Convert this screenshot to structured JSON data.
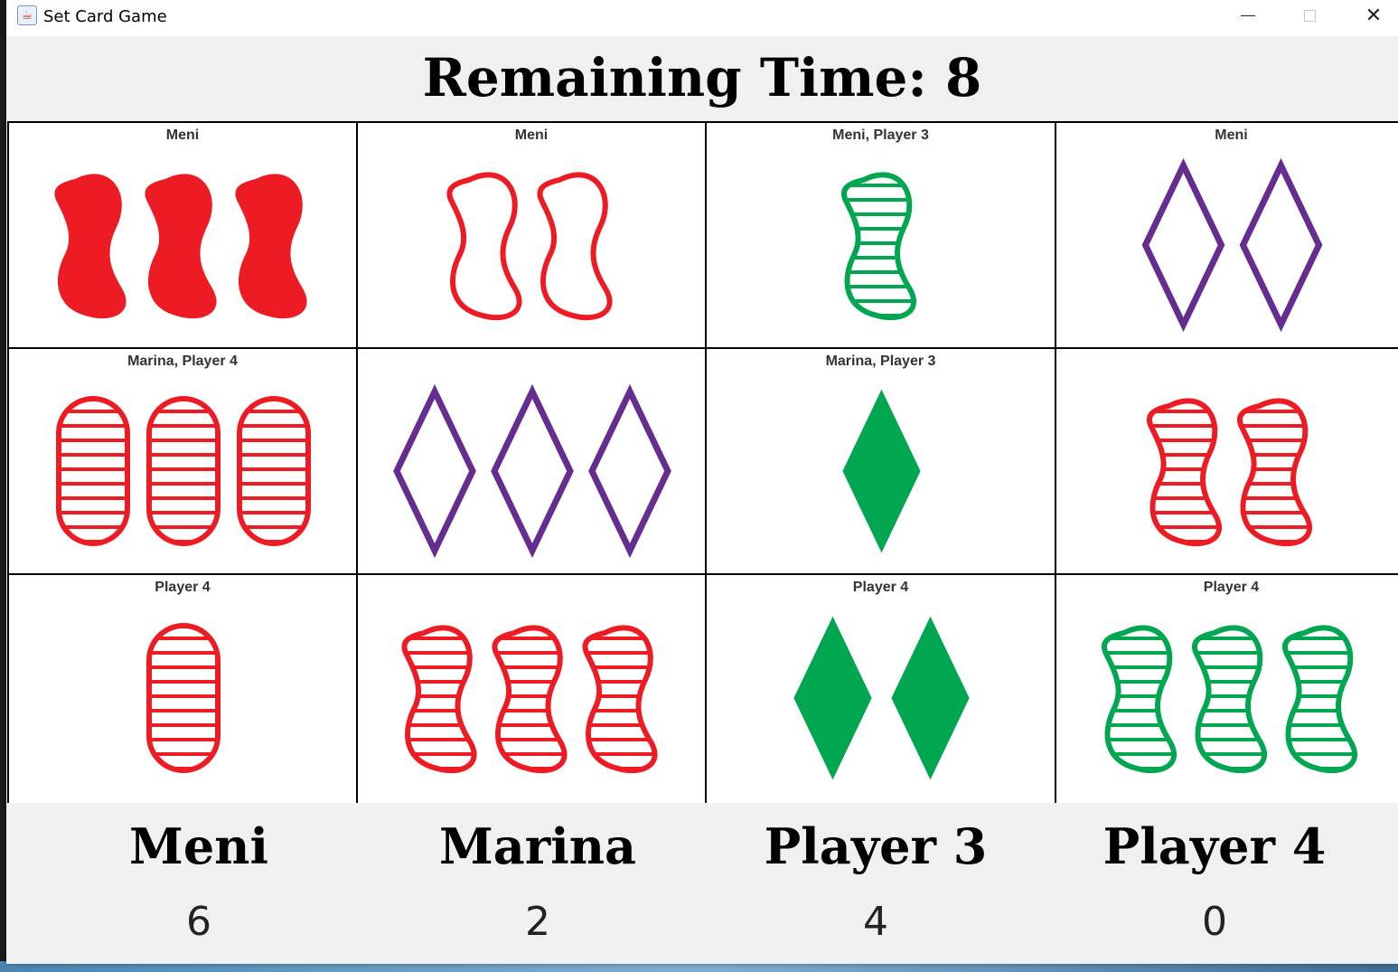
{
  "window": {
    "title": "Set Card Game",
    "minimize_icon": "minimize-icon",
    "maximize_icon": "maximize-icon",
    "close_icon": "close-icon"
  },
  "timer": {
    "label": "Remaining Time: 8"
  },
  "colors": {
    "red": "#ed1c24",
    "green": "#00a650",
    "purple": "#662d91"
  },
  "cards": [
    {
      "label": "Meni",
      "count": 3,
      "shape": "squiggle",
      "color": "red",
      "fill": "solid"
    },
    {
      "label": "Meni",
      "count": 2,
      "shape": "squiggle",
      "color": "red",
      "fill": "empty"
    },
    {
      "label": "Meni, Player 3",
      "count": 1,
      "shape": "squiggle",
      "color": "green",
      "fill": "striped"
    },
    {
      "label": "Meni",
      "count": 2,
      "shape": "diamond",
      "color": "purple",
      "fill": "empty"
    },
    {
      "label": "Marina, Player 4",
      "count": 3,
      "shape": "oval",
      "color": "red",
      "fill": "striped"
    },
    {
      "label": "",
      "count": 3,
      "shape": "diamond",
      "color": "purple",
      "fill": "empty"
    },
    {
      "label": "Marina, Player 3",
      "count": 1,
      "shape": "diamond",
      "color": "green",
      "fill": "solid"
    },
    {
      "label": "",
      "count": 2,
      "shape": "squiggle",
      "color": "red",
      "fill": "striped"
    },
    {
      "label": "Player 4",
      "count": 1,
      "shape": "oval",
      "color": "red",
      "fill": "striped"
    },
    {
      "label": "",
      "count": 3,
      "shape": "squiggle",
      "color": "red",
      "fill": "striped"
    },
    {
      "label": "Player 4",
      "count": 2,
      "shape": "diamond",
      "color": "green",
      "fill": "solid"
    },
    {
      "label": "Player 4",
      "count": 3,
      "shape": "squiggle",
      "color": "green",
      "fill": "striped"
    }
  ],
  "players": [
    {
      "name": "Meni",
      "score": "6"
    },
    {
      "name": "Marina",
      "score": "2"
    },
    {
      "name": "Player 3",
      "score": "4"
    },
    {
      "name": "Player 4",
      "score": "0"
    }
  ]
}
